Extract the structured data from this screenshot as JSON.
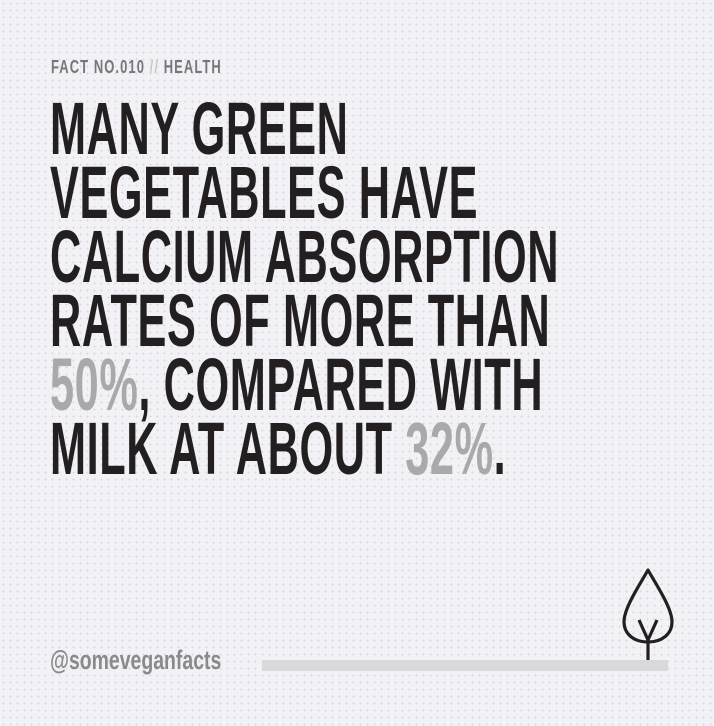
{
  "kicker": {
    "fact": "FACT NO.010",
    "separator": "//",
    "category": "HEALTH"
  },
  "headline": {
    "line1": "MANY GREEN",
    "line2": "VEGETABLES HAVE",
    "line3": "CALCIUM ABSORPTION",
    "line4": "RATES OF MORE THAN",
    "line5_highlight": "50%",
    "line5_rest": ", COMPARED WITH",
    "line6_start": "MILK AT ABOUT ",
    "line6_highlight": "32%",
    "line6_end": "."
  },
  "footer": {
    "handle": "@someveganfacts",
    "icon": "tree-icon"
  },
  "colors": {
    "text": "#231f20",
    "highlight": "#a9a9ac",
    "background": "#f2f1f5",
    "bar": "#d9d9db"
  }
}
